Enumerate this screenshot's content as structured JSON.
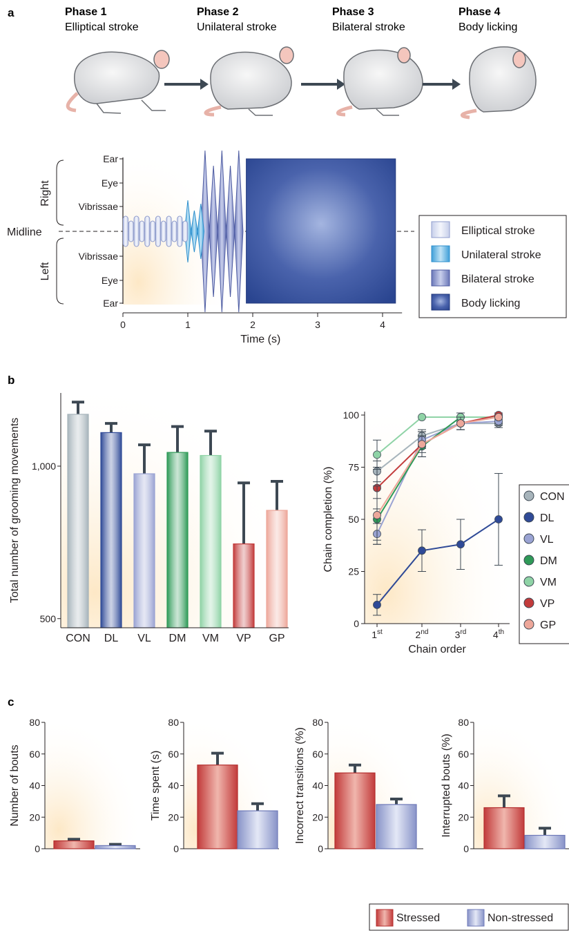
{
  "panels": {
    "a": "a",
    "b": "b",
    "c": "c"
  },
  "phases": [
    {
      "title": "Phase 1",
      "subtitle": "Elliptical stroke"
    },
    {
      "title": "Phase 2",
      "subtitle": "Unilateral stroke"
    },
    {
      "title": "Phase 3",
      "subtitle": "Bilateral stroke"
    },
    {
      "title": "Phase 4",
      "subtitle": "Body licking"
    }
  ],
  "colors": {
    "elliptical": "#dfe4f3",
    "unilateral": "#69b7e3",
    "bilateral": "#8d97cb",
    "body": "#2f4a97",
    "stressed": "#c23b3b",
    "nonstressed": "#9aa3d3",
    "CON": "#a7b4bb",
    "DL": "#2f4a97",
    "VL": "#9aa3d3",
    "DM": "#2f9a58",
    "VM": "#8fd3a6",
    "VP": "#c23b3b",
    "GP": "#eda79a"
  },
  "chart_data": [
    {
      "type": "timeline",
      "panel": "a",
      "y_groups": [
        "Right",
        "Left"
      ],
      "y_ticks_right": [
        "Ear",
        "Eye",
        "Vibrissae"
      ],
      "y_ticks_left": [
        "Vibrissae",
        "Eye",
        "Ear"
      ],
      "midline_label": "Midline",
      "x_ticks": [
        "0",
        "1",
        "2",
        "3",
        "4"
      ],
      "xlabel": "Time (s)",
      "xlim": [
        0,
        4.3
      ],
      "segments": [
        {
          "name": "Elliptical stroke",
          "start": 0,
          "end": 1.0
        },
        {
          "name": "Unilateral stroke",
          "start": 0.85,
          "end": 1.25
        },
        {
          "name": "Bilateral stroke",
          "start": 1.2,
          "end": 1.85
        },
        {
          "name": "Body licking",
          "start": 1.9,
          "end": 4.2
        }
      ],
      "legend": [
        "Elliptical stroke",
        "Unilateral stroke",
        "Bilateral stroke",
        "Body licking"
      ]
    },
    {
      "type": "bar",
      "panel": "b",
      "categories": [
        "CON",
        "DL",
        "VL",
        "DM",
        "VM",
        "VP",
        "GP"
      ],
      "values": [
        1170,
        1110,
        975,
        1045,
        1035,
        745,
        855
      ],
      "errors": [
        40,
        30,
        95,
        85,
        80,
        200,
        95
      ],
      "ylabel": "Total number of grooming movements",
      "y_ticks": [
        "500",
        "1,000"
      ],
      "ylim": [
        470,
        1240
      ]
    },
    {
      "type": "line",
      "panel": "b",
      "x": [
        "1st",
        "2nd",
        "3rd",
        "4th"
      ],
      "xlabel": "Chain order",
      "ylabel": "Chain completion (%)",
      "y_ticks": [
        "0",
        "25",
        "50",
        "75",
        "100"
      ],
      "ylim": [
        0,
        100
      ],
      "series": [
        {
          "name": "CON",
          "values": [
            73,
            90,
            96,
            96
          ],
          "errors": [
            5,
            3,
            3,
            2
          ]
        },
        {
          "name": "DL",
          "values": [
            9,
            35,
            38,
            50
          ],
          "errors": [
            5,
            10,
            12,
            22
          ]
        },
        {
          "name": "VL",
          "values": [
            43,
            88,
            96,
            97
          ],
          "errors": [
            5,
            4,
            3,
            2
          ]
        },
        {
          "name": "DM",
          "values": [
            50,
            85,
            99,
            99
          ],
          "errors": [
            10,
            5,
            2,
            1
          ]
        },
        {
          "name": "VM",
          "values": [
            81,
            99,
            99,
            99
          ],
          "errors": [
            7,
            0,
            0,
            0
          ]
        },
        {
          "name": "VP",
          "values": [
            65,
            86,
            96,
            100
          ],
          "errors": [
            10,
            4,
            3,
            1
          ]
        },
        {
          "name": "GP",
          "values": [
            52,
            86,
            96,
            99
          ],
          "errors": [
            14,
            6,
            3,
            1
          ]
        }
      ],
      "legend": [
        "CON",
        "DL",
        "VL",
        "DM",
        "VM",
        "VP",
        "GP"
      ]
    },
    {
      "type": "bar",
      "panel": "c",
      "categories": [
        "Stressed",
        "Non-stressed"
      ],
      "ylabel": "Number of bouts",
      "y_ticks": [
        "0",
        "20",
        "40",
        "60",
        "80"
      ],
      "ylim": [
        0,
        80
      ],
      "values": [
        5,
        2
      ],
      "errors": [
        1,
        0.8
      ]
    },
    {
      "type": "bar",
      "panel": "c",
      "categories": [
        "Stressed",
        "Non-stressed"
      ],
      "ylabel": "Time spent (s)",
      "y_ticks": [
        "0",
        "20",
        "40",
        "60",
        "80"
      ],
      "ylim": [
        0,
        80
      ],
      "values": [
        53,
        24
      ],
      "errors": [
        7.5,
        4.5
      ]
    },
    {
      "type": "bar",
      "panel": "c",
      "categories": [
        "Stressed",
        "Non-stressed"
      ],
      "ylabel": "Incorrect transitions (%)",
      "y_ticks": [
        "0",
        "20",
        "40",
        "60",
        "80"
      ],
      "ylim": [
        0,
        80
      ],
      "values": [
        48,
        28
      ],
      "errors": [
        5,
        3.5
      ]
    },
    {
      "type": "bar",
      "panel": "c",
      "categories": [
        "Stressed",
        "Non-stressed"
      ],
      "ylabel": "Interrupted bouts (%)",
      "y_ticks": [
        "0",
        "20",
        "40",
        "60",
        "80"
      ],
      "ylim": [
        0,
        80
      ],
      "values": [
        26,
        8.5
      ],
      "errors": [
        7.5,
        4.5
      ]
    }
  ],
  "c_legend": [
    "Stressed",
    "Non-stressed"
  ]
}
